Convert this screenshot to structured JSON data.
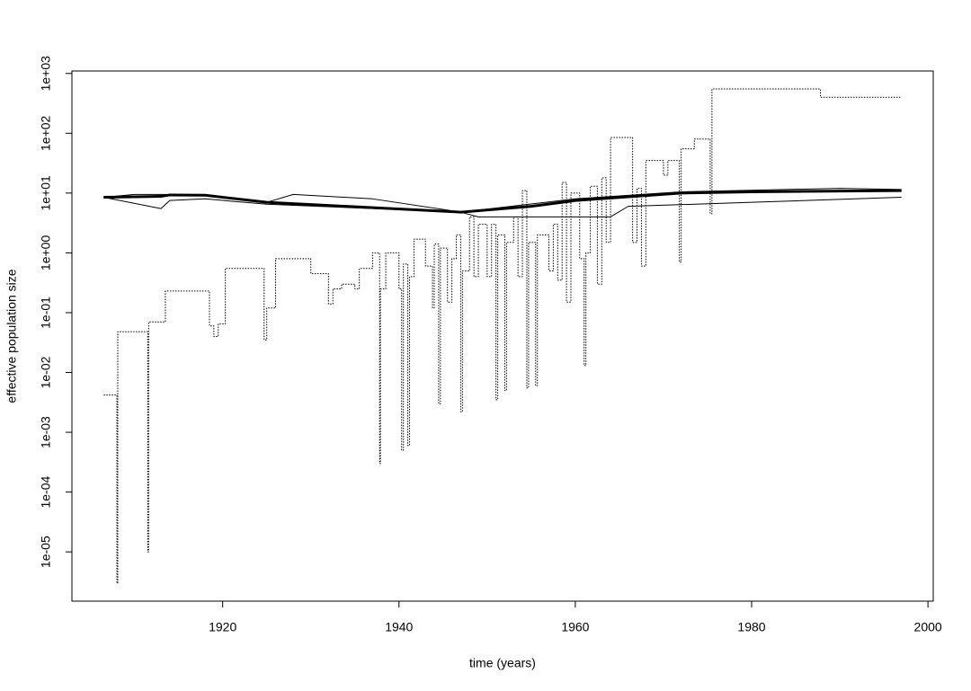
{
  "chart_data": {
    "type": "line",
    "xlabel": "time (years)",
    "ylabel": "effective population size",
    "xlim": [
      1902.9,
      2000.6
    ],
    "xticks": [
      1920,
      1940,
      1960,
      1980,
      2000
    ],
    "ylim": [
      1.5e-06,
      1100
    ],
    "ylog": true,
    "yticks": [
      {
        "value": 1e-05,
        "label": "1e-05"
      },
      {
        "value": 0.0001,
        "label": "1e-04"
      },
      {
        "value": 0.001,
        "label": "1e-03"
      },
      {
        "value": 0.01,
        "label": "1e-02"
      },
      {
        "value": 0.1,
        "label": "1e-01"
      },
      {
        "value": 1,
        "label": "1e+00"
      },
      {
        "value": 10,
        "label": "1e+01"
      },
      {
        "value": 100,
        "label": "1e+02"
      },
      {
        "value": 1000,
        "label": "1e+03"
      }
    ],
    "series": [
      {
        "color": "#000000",
        "width": 1,
        "style": "dotted",
        "step": true,
        "x": [
          1906.5,
          1908.0,
          1908.1,
          1911.5,
          1911.6,
          1913.5,
          1918.5,
          1919.0,
          1919.5,
          1920.3,
          1924.7,
          1925.0,
          1926.0,
          1930.0,
          1932.0,
          1932.5,
          1933.5,
          1935.0,
          1935.5,
          1937.0,
          1937.8,
          1937.9,
          1938.5,
          1940.0,
          1940.3,
          1940.5,
          1941.0,
          1941.2,
          1941.7,
          1943.0,
          1943.8,
          1944.0,
          1944.5,
          1944.7,
          1945.5,
          1946.0,
          1946.5,
          1947.0,
          1947.2,
          1948.0,
          1948.5,
          1949.0,
          1950.0,
          1950.5,
          1951.0,
          1951.2,
          1952.0,
          1952.2,
          1953.0,
          1953.5,
          1954.0,
          1954.5,
          1954.7,
          1955.5,
          1955.7,
          1957.0,
          1957.5,
          1958.0,
          1958.5,
          1959.0,
          1959.5,
          1960.5,
          1961.0,
          1961.2,
          1961.7,
          1962.5,
          1963.0,
          1963.5,
          1964.0,
          1966.5,
          1967.0,
          1967.5,
          1968.0,
          1970.0,
          1970.5,
          1971.8,
          1972.0,
          1973.5,
          1975.3,
          1975.5,
          1987.8,
          1997.0
        ],
        "values": [
          0.0042,
          3e-06,
          0.048,
          1e-05,
          0.07,
          0.23,
          0.06,
          0.04,
          0.065,
          0.55,
          0.035,
          0.12,
          0.8,
          0.45,
          0.14,
          0.25,
          0.3,
          0.25,
          0.55,
          1,
          0.0003,
          0.25,
          1,
          0.25,
          0.0005,
          0.65,
          0.0006,
          0.4,
          1.7,
          0.6,
          0.12,
          1.4,
          0.003,
          1.2,
          0.15,
          0.8,
          2,
          0.0022,
          0.5,
          4,
          0.4,
          3,
          0.4,
          3,
          0.0035,
          2,
          0.005,
          1.5,
          4,
          0.4,
          11,
          0.0055,
          1.5,
          0.006,
          2,
          0.5,
          3,
          0.35,
          15,
          0.15,
          10,
          0.8,
          0.013,
          1,
          13,
          0.3,
          18,
          1.5,
          85,
          1.5,
          12,
          0.6,
          35,
          20,
          35,
          0.7,
          55,
          80,
          4.5,
          550,
          400,
          400
        ]
      },
      {
        "color": "#000000",
        "width": 1,
        "style": "solid",
        "x": [
          1906.5,
          1910,
          1913,
          1918,
          1925,
          1928,
          1937,
          1947,
          1960,
          1972,
          1990,
          1997
        ],
        "values": [
          8.5,
          9.5,
          9.5,
          9.3,
          7,
          9.5,
          8,
          4.8,
          8,
          10.5,
          12,
          11.5
        ]
      },
      {
        "color": "#000000",
        "width": 1,
        "style": "solid",
        "x": [
          1906.5,
          1913,
          1914,
          1918,
          1925,
          1947,
          1949,
          1964,
          1966,
          1980,
          1997
        ],
        "values": [
          8.5,
          5.5,
          7.5,
          8,
          6.5,
          4.8,
          4,
          4,
          6,
          7,
          8.5
        ]
      },
      {
        "color": "#000000",
        "width": 3,
        "style": "solid",
        "x": [
          1906.5,
          1913,
          1914,
          1918,
          1925,
          1947,
          1955,
          1960,
          1972,
          1980,
          1997
        ],
        "values": [
          8.5,
          8.8,
          9.3,
          9.2,
          7,
          4.8,
          6,
          7.5,
          10,
          10.5,
          11
        ]
      }
    ]
  }
}
